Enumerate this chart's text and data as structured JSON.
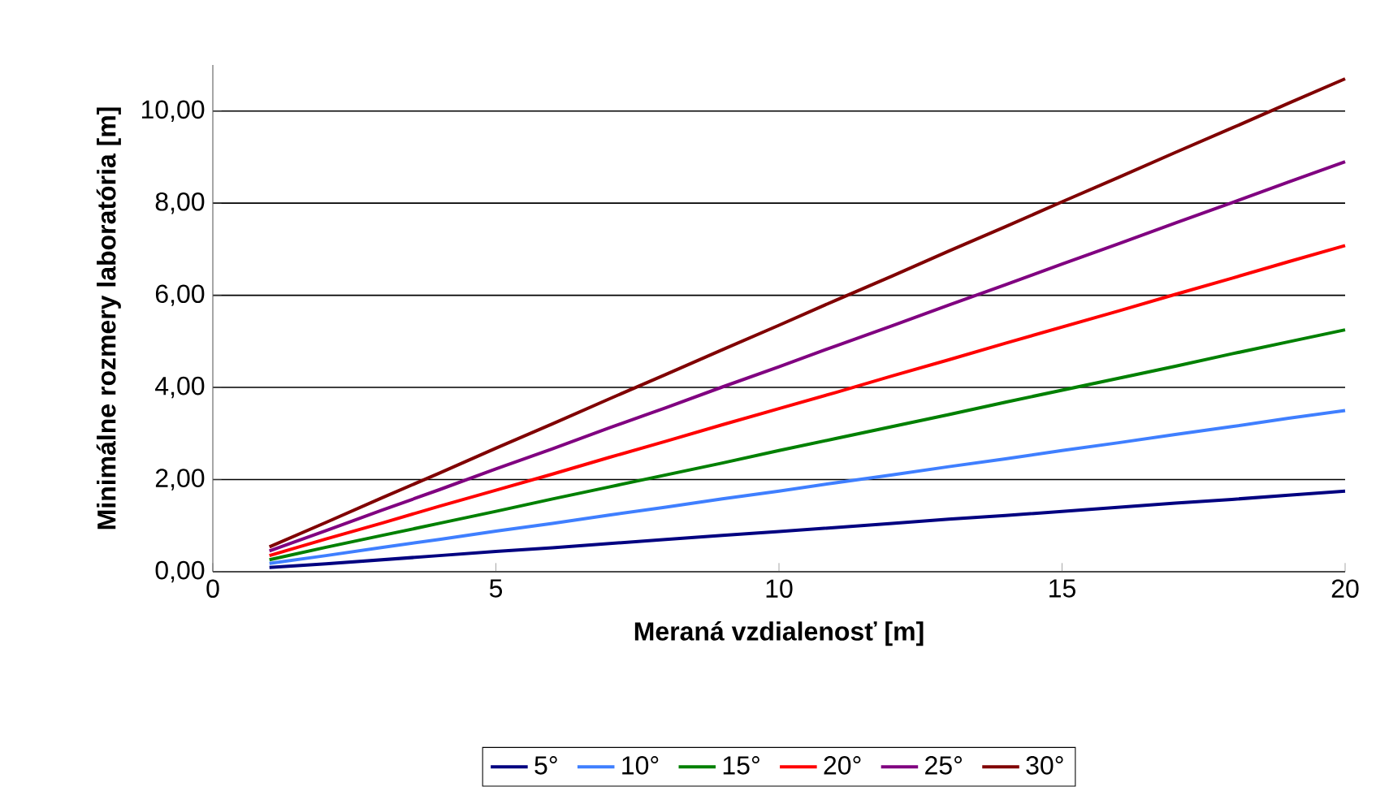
{
  "chart_data": {
    "type": "line",
    "xlabel": "Meraná vzdialenosť [m]",
    "ylabel": "Minimálne rozmery laboratória [m]",
    "x": [
      1,
      2,
      3,
      4,
      5,
      6,
      7,
      8,
      9,
      10,
      11,
      12,
      13,
      14,
      15,
      16,
      17,
      18,
      19,
      20
    ],
    "series": [
      {
        "name": "5°",
        "color": "#000080",
        "values": [
          0.09,
          0.17,
          0.26,
          0.35,
          0.44,
          0.52,
          0.61,
          0.7,
          0.79,
          0.87,
          0.96,
          1.05,
          1.14,
          1.22,
          1.31,
          1.4,
          1.49,
          1.57,
          1.66,
          1.75
        ]
      },
      {
        "name": "10°",
        "color": "#3f7fff",
        "values": [
          0.18,
          0.35,
          0.53,
          0.7,
          0.88,
          1.05,
          1.23,
          1.4,
          1.58,
          1.75,
          1.93,
          2.1,
          2.28,
          2.45,
          2.63,
          2.8,
          2.98,
          3.15,
          3.33,
          3.5
        ]
      },
      {
        "name": "15°",
        "color": "#008000",
        "values": [
          0.26,
          0.53,
          0.79,
          1.05,
          1.31,
          1.58,
          1.84,
          2.1,
          2.36,
          2.63,
          2.89,
          3.15,
          3.41,
          3.68,
          3.94,
          4.2,
          4.46,
          4.73,
          4.99,
          5.25
        ]
      },
      {
        "name": "20°",
        "color": "#ff0000",
        "values": [
          0.35,
          0.71,
          1.06,
          1.42,
          1.77,
          2.12,
          2.48,
          2.83,
          3.19,
          3.54,
          3.89,
          4.25,
          4.6,
          4.96,
          5.31,
          5.66,
          6.02,
          6.37,
          6.73,
          7.08
        ]
      },
      {
        "name": "25°",
        "color": "#800080",
        "values": [
          0.45,
          0.89,
          1.34,
          1.78,
          2.23,
          2.67,
          3.12,
          3.56,
          4.01,
          4.45,
          4.9,
          5.34,
          5.79,
          6.23,
          6.68,
          7.12,
          7.57,
          8.01,
          8.46,
          8.9
        ]
      },
      {
        "name": "30°",
        "color": "#800000",
        "values": [
          0.54,
          1.07,
          1.61,
          2.14,
          2.68,
          3.21,
          3.75,
          4.28,
          4.82,
          5.35,
          5.89,
          6.42,
          6.96,
          7.49,
          8.03,
          8.56,
          9.1,
          9.63,
          10.17,
          10.7
        ]
      }
    ],
    "xlim": [
      0,
      20
    ],
    "xticks": [
      0,
      5,
      10,
      15,
      20
    ],
    "ylim": [
      0,
      11
    ],
    "yticks": [
      {
        "value": 0,
        "label": "0,00"
      },
      {
        "value": 2,
        "label": "2,00"
      },
      {
        "value": 4,
        "label": "4,00"
      },
      {
        "value": 6,
        "label": "6,00"
      },
      {
        "value": 8,
        "label": "8,00"
      },
      {
        "value": 10,
        "label": "10,00"
      }
    ],
    "grid": "y",
    "legend": "bottom",
    "marker": "none",
    "line_style": "solid"
  }
}
